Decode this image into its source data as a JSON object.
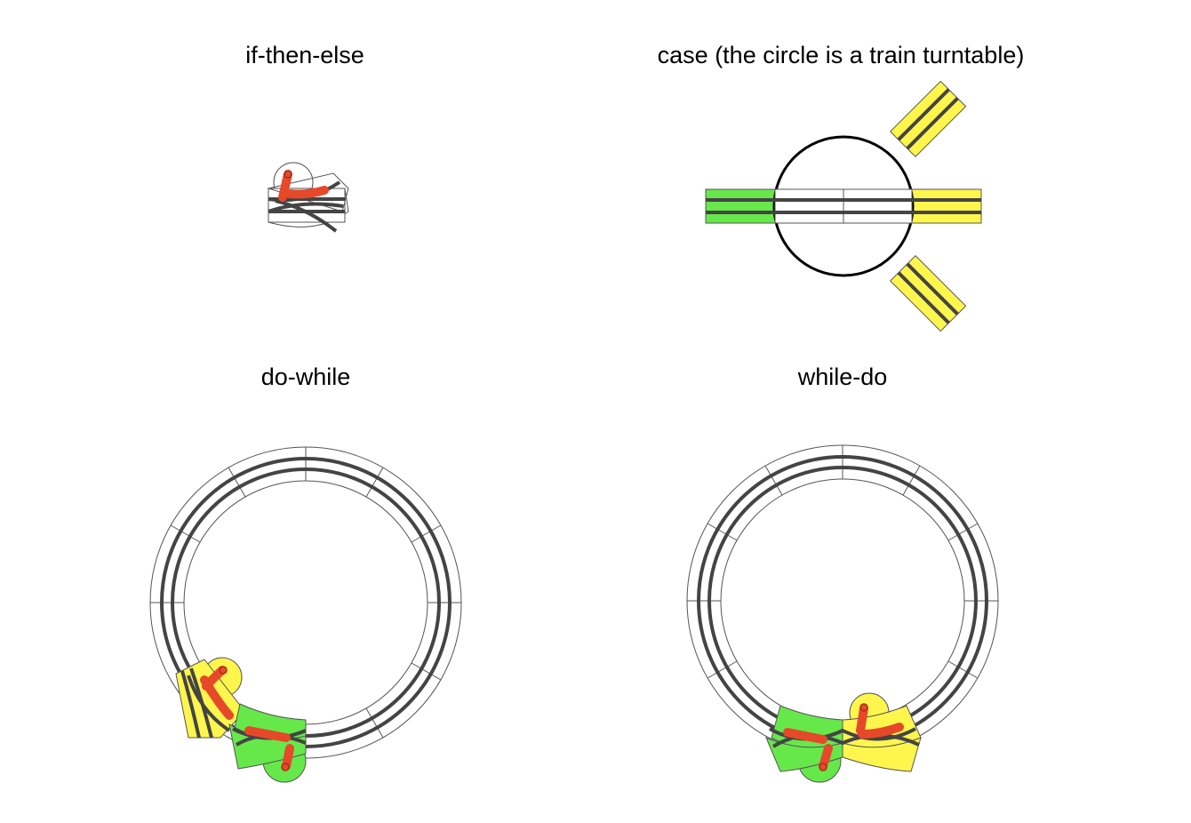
{
  "panels": [
    {
      "title": "if-then-else"
    },
    {
      "title": "case (the circle is a train turntable)"
    },
    {
      "title": "do-while"
    },
    {
      "title": "while-do"
    }
  ],
  "colors": {
    "rail": "#444444",
    "outline": "#555555",
    "green": "#66e84a",
    "yellow": "#fff64d",
    "lever": "#e6492a",
    "lever_edge": "#a83018",
    "white": "#ffffff"
  }
}
